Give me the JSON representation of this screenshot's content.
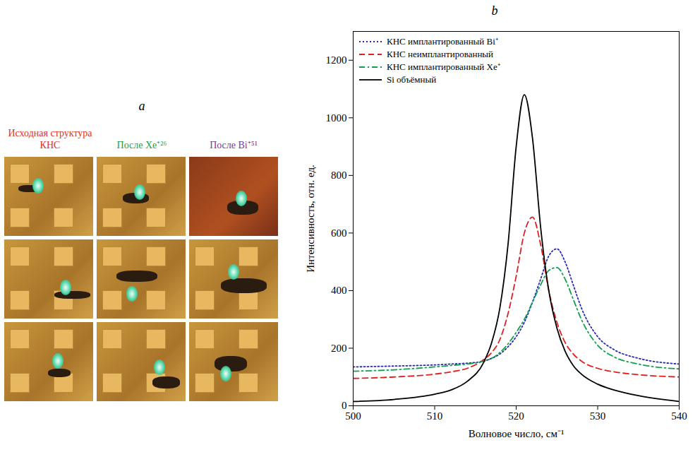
{
  "panel_a": {
    "title": "a",
    "column_titles": [
      "Исходная структура КНС",
      "После Xe⁺²⁶",
      "После Bi⁺⁵¹"
    ],
    "colors": [
      "#e0302a",
      "#20a050",
      "#7040a0"
    ]
  },
  "chart_data": {
    "type": "line",
    "title": "b",
    "x_label": "Волновое число, см⁻¹",
    "y_label": "Интенсивность, отн. ед.",
    "x": [
      500,
      505,
      510,
      512,
      514,
      516,
      517,
      518,
      519,
      520,
      521,
      522,
      523,
      524,
      525,
      526,
      527,
      528,
      530,
      532,
      535,
      540
    ],
    "series": [
      {
        "name": "КНС имплантированный Bi⁺",
        "color": "#2a2ab0",
        "line_style": "dotted",
        "values": [
          135,
          138,
          142,
          145,
          148,
          155,
          165,
          180,
          205,
          240,
          290,
          360,
          440,
          520,
          545,
          500,
          420,
          340,
          240,
          195,
          165,
          145
        ]
      },
      {
        "name": "КНС неимплантированный",
        "color": "#e02020",
        "line_style": "dashed",
        "values": [
          95,
          100,
          110,
          118,
          130,
          160,
          185,
          230,
          320,
          450,
          600,
          655,
          560,
          400,
          290,
          220,
          180,
          155,
          130,
          118,
          108,
          100
        ]
      },
      {
        "name": "КНС имплантированный Xe⁺",
        "color": "#10a050",
        "line_style": "dashdot",
        "values": [
          120,
          125,
          135,
          140,
          145,
          155,
          165,
          185,
          215,
          255,
          300,
          360,
          420,
          470,
          480,
          440,
          370,
          300,
          210,
          170,
          145,
          128
        ]
      },
      {
        "name": "Si объёмный",
        "color": "#000000",
        "line_style": "solid",
        "values": [
          15,
          22,
          40,
          55,
          85,
          150,
          220,
          340,
          560,
          900,
          1080,
          930,
          620,
          400,
          270,
          190,
          140,
          110,
          75,
          55,
          35,
          15
        ]
      }
    ],
    "xlim": [
      500,
      540
    ],
    "xticks": [
      500,
      510,
      520,
      530,
      540
    ],
    "ylim": [
      0,
      1300
    ],
    "yticks": [
      0,
      200,
      400,
      600,
      800,
      1000,
      1200
    ],
    "legend": "top-left",
    "grid": false
  }
}
